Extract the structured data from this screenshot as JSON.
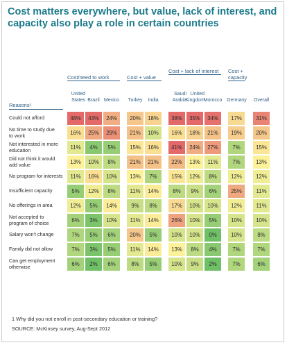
{
  "title": "Cost matters everywhere, but value, lack of interest, and capacity also play a role in certain countries",
  "colors": {
    "title": "#1c7a8a",
    "header": "#2f5f86",
    "scale_low": "#6fbf67",
    "scale_mid": "#fdf29a",
    "scale_high": "#e46a6a"
  },
  "groups": [
    "Cost/need to work",
    "Cost + value",
    "Cost + lack of interest",
    "Cost + capacity"
  ],
  "reasons_header": "Reasons¹",
  "footnote": "1 Why did you not enroll in post-secondary education or training?",
  "source": "SOURCE: McKinsey survey, Aug-Sept 2012",
  "chart_data": {
    "type": "heatmap",
    "title": "Cost matters everywhere, but value, lack of interest, and capacity also play a role in certain countries",
    "units": "%",
    "groups": [
      {
        "name": "Cost/need to work",
        "columns": [
          "United States",
          "Brazil",
          "Mexico"
        ]
      },
      {
        "name": "Cost + value",
        "columns": [
          "Turkey",
          "India"
        ]
      },
      {
        "name": "Cost + lack of interest",
        "columns": [
          "Saudi Arabia",
          "United Kingdom",
          "Morocco"
        ]
      },
      {
        "name": "Cost + capacity",
        "columns": [
          "Germany"
        ]
      },
      {
        "name": "",
        "columns": [
          "Overall"
        ]
      }
    ],
    "columns": [
      "United States",
      "Brazil",
      "Mexico",
      "Turkey",
      "India",
      "Saudi Arabia",
      "United Kingdom",
      "Morocco",
      "Germany",
      "Overall"
    ],
    "column_labels": [
      "United\nStates",
      "Brazil",
      "Mexico",
      "Turkey",
      "India",
      "Saudi\nArabia",
      "United\nKingdom",
      "Morocco",
      "Germany",
      "Overall"
    ],
    "rows": [
      "Could not afford",
      "No time to study due to work",
      "Not interested in more education",
      "Did not think it would add value",
      "No program for interests",
      "Insufficient capacity",
      "No offerings in area",
      "Not accepted to program of choice",
      "Salary won't change",
      "Family did not allow",
      "Can get employment otherwise"
    ],
    "row_labels": [
      "Could not afford",
      "No time to study due\nto work",
      "Not interested in more\neducation",
      "Did not think it would\nadd value",
      "No program for interests",
      "Insufficient capacity",
      "No offerings in area",
      "Not accepted to\nprogram of choice",
      "Salary won't change",
      "Family did not allow",
      "Can get employment\notherwise"
    ],
    "values": [
      [
        48,
        43,
        24,
        20,
        18,
        38,
        35,
        34,
        17,
        31
      ],
      [
        16,
        25,
        29,
        21,
        10,
        16,
        18,
        21,
        19,
        20
      ],
      [
        11,
        4,
        5,
        15,
        16,
        41,
        24,
        27,
        7,
        15
      ],
      [
        13,
        10,
        8,
        21,
        21,
        22,
        13,
        11,
        7,
        13
      ],
      [
        11,
        16,
        10,
        13,
        7,
        15,
        12,
        8,
        12,
        12
      ],
      [
        5,
        12,
        8,
        11,
        14,
        8,
        9,
        6,
        25,
        11
      ],
      [
        12,
        5,
        14,
        9,
        8,
        17,
        10,
        10,
        12,
        11
      ],
      [
        6,
        3,
        10,
        11,
        14,
        26,
        10,
        5,
        10,
        10
      ],
      [
        7,
        5,
        6,
        20,
        5,
        10,
        10,
        0,
        10,
        8
      ],
      [
        7,
        3,
        5,
        11,
        14,
        13,
        8,
        4,
        7,
        7
      ],
      [
        6,
        2,
        6,
        8,
        5,
        10,
        9,
        2,
        7,
        6
      ]
    ],
    "value_labels": [
      [
        "48%",
        "43%",
        "24%",
        "20%",
        "18%",
        "38%",
        "35%",
        "34%",
        "17%",
        "31%"
      ],
      [
        "16%",
        "25%",
        "29%",
        "21%",
        "10%",
        "16%",
        "18%",
        "21%",
        "19%",
        "20%"
      ],
      [
        "11%",
        "4%",
        "5%",
        "15%",
        "16%",
        "41%",
        "24%",
        "27%",
        "7%",
        "15%"
      ],
      [
        "13%",
        "10%",
        "8%",
        "21%",
        "21%",
        "22%",
        "13%",
        "11%",
        "7%",
        "13%"
      ],
      [
        "11%",
        "16%",
        "10%",
        "13%",
        "7%",
        "15%",
        "12%",
        "8%",
        "12%",
        "12%"
      ],
      [
        "5%",
        "12%",
        "8%",
        "11%",
        "14%",
        "8%",
        "9%",
        "6%",
        "25%",
        "11%"
      ],
      [
        "12%",
        "5%",
        "14%",
        "9%",
        "8%",
        "17%",
        "10%",
        "10%",
        "12%",
        "11%"
      ],
      [
        "6%",
        "3%",
        "10%",
        "11%",
        "14%",
        "26%",
        "10%",
        "5%",
        "10%",
        "10%"
      ],
      [
        "7%",
        "5%",
        "6%",
        "20%",
        "5%",
        "10%",
        "10%",
        "0%",
        "10%",
        "8%"
      ],
      [
        "7%",
        "3%",
        "5%",
        "11%",
        "14%",
        "13%",
        "8%",
        "4%",
        "7%",
        "7%"
      ],
      [
        "6%",
        "2%",
        "6%",
        "8%",
        "5%",
        "10%",
        "9%",
        "2%",
        "7%",
        "6%"
      ]
    ]
  }
}
